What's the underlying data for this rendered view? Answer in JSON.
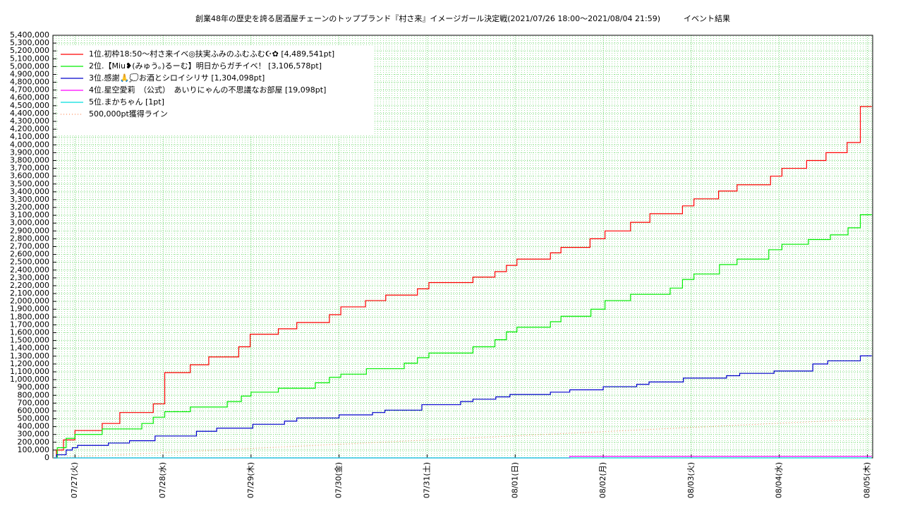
{
  "chart_data": {
    "type": "step",
    "title": "創業48年の歴史を誇る居酒屋チェーンのトップブランド『村さ来』イメージガール決定戦(2021/07/26 18:00～2021/08/04 21:59)　　　イベント結果",
    "xlim": [
      0.75,
      10.06
    ],
    "xticks": [
      {
        "value": 1,
        "label": "07/27(火)"
      },
      {
        "value": 2,
        "label": "07/28(水)"
      },
      {
        "value": 3,
        "label": "07/29(木)"
      },
      {
        "value": 4,
        "label": "07/30(金)"
      },
      {
        "value": 5,
        "label": "07/31(土)"
      },
      {
        "value": 6,
        "label": "08/01(日)"
      },
      {
        "value": 7,
        "label": "08/02(月)"
      },
      {
        "value": 8,
        "label": "08/03(火)"
      },
      {
        "value": 9,
        "label": "08/04(水)"
      },
      {
        "value": 10,
        "label": "08/05(木)"
      }
    ],
    "ylim": [
      0,
      5400000
    ],
    "yticks": [
      0,
      {
        "value": 100000,
        "label": "100,000"
      },
      {
        "value": 200000,
        "label": "200,000"
      },
      {
        "value": 300000,
        "label": "300,000"
      },
      {
        "value": 400000,
        "label": "400,000"
      },
      {
        "value": 500000,
        "label": "500,000"
      },
      {
        "value": 600000,
        "label": "600,000"
      },
      {
        "value": 700000,
        "label": "700,000"
      },
      {
        "value": 800000,
        "label": "800,000"
      },
      {
        "value": 900000,
        "label": "900,000"
      },
      {
        "value": 1000000,
        "label": "1,000,000"
      },
      {
        "value": 1100000,
        "label": "1,100,000"
      },
      {
        "value": 1200000,
        "label": "1,200,000"
      },
      {
        "value": 1300000,
        "label": "1,300,000"
      },
      {
        "value": 1400000,
        "label": "1,400,000"
      },
      {
        "value": 1500000,
        "label": "1,500,000"
      },
      {
        "value": 1600000,
        "label": "1,600,000"
      },
      {
        "value": 1700000,
        "label": "1,700,000"
      },
      {
        "value": 1800000,
        "label": "1,800,000"
      },
      {
        "value": 1900000,
        "label": "1,900,000"
      },
      {
        "value": 2000000,
        "label": "2,000,000"
      },
      {
        "value": 2100000,
        "label": "2,100,000"
      },
      {
        "value": 2200000,
        "label": "2,200,000"
      },
      {
        "value": 2300000,
        "label": "2,300,000"
      },
      {
        "value": 2400000,
        "label": "2,400,000"
      },
      {
        "value": 2500000,
        "label": "2,500,000"
      },
      {
        "value": 2600000,
        "label": "2,600,000"
      },
      {
        "value": 2700000,
        "label": "2,700,000"
      },
      {
        "value": 2800000,
        "label": "2,800,000"
      },
      {
        "value": 2900000,
        "label": "2,900,000"
      },
      {
        "value": 3000000,
        "label": "3,000,000"
      },
      {
        "value": 3100000,
        "label": "3,100,000"
      },
      {
        "value": 3200000,
        "label": "3,200,000"
      },
      {
        "value": 3300000,
        "label": "3,300,000"
      },
      {
        "value": 3400000,
        "label": "3,400,000"
      },
      {
        "value": 3500000,
        "label": "3,500,000"
      },
      {
        "value": 3600000,
        "label": "3,600,000"
      },
      {
        "value": 3700000,
        "label": "3,700,000"
      },
      {
        "value": 3800000,
        "label": "3,800,000"
      },
      {
        "value": 3900000,
        "label": "3,900,000"
      },
      {
        "value": 4000000,
        "label": "4,000,000"
      },
      {
        "value": 4100000,
        "label": "4,100,000"
      },
      {
        "value": 4200000,
        "label": "4,200,000"
      },
      {
        "value": 4300000,
        "label": "4,300,000"
      },
      {
        "value": 4400000,
        "label": "4,400,000"
      },
      {
        "value": 4500000,
        "label": "4,500,000"
      },
      {
        "value": 4600000,
        "label": "4,600,000"
      },
      {
        "value": 4700000,
        "label": "4,700,000"
      },
      {
        "value": 4800000,
        "label": "4,800,000"
      },
      {
        "value": 4900000,
        "label": "4,900,000"
      },
      {
        "value": 5000000,
        "label": "5,000,000"
      },
      {
        "value": 5100000,
        "label": "5,100,000"
      },
      {
        "value": 5200000,
        "label": "5,200,000"
      },
      {
        "value": 5300000,
        "label": "5,300,000"
      },
      {
        "value": 5400000,
        "label": "5,400,000"
      }
    ],
    "grid": true,
    "legend": "upper left",
    "series": [
      {
        "name": "1位.初枠18:50～村さ来イベ◎扶実ふみのふむふむ☪✿ [4,489,541pt]",
        "color": "#ff0000",
        "x": [
          0.75,
          0.79,
          0.87,
          1.0,
          1.31,
          1.51,
          1.89,
          2.02,
          2.31,
          2.52,
          2.86,
          2.99,
          3.31,
          3.52,
          3.89,
          4.02,
          4.3,
          4.53,
          4.89,
          5.02,
          5.52,
          5.77,
          5.9,
          6.02,
          6.4,
          6.52,
          6.85,
          7.02,
          7.31,
          7.53,
          7.9,
          8.03,
          8.31,
          8.52,
          8.9,
          9.03,
          9.31,
          9.53,
          9.77,
          9.92,
          10.05
        ],
        "values": [
          0,
          100000,
          230000,
          350000,
          440000,
          580000,
          690000,
          1090000,
          1190000,
          1290000,
          1420000,
          1580000,
          1650000,
          1730000,
          1830000,
          1930000,
          2010000,
          2080000,
          2160000,
          2240000,
          2310000,
          2380000,
          2460000,
          2540000,
          2620000,
          2690000,
          2800000,
          2900000,
          3010000,
          3120000,
          3220000,
          3310000,
          3410000,
          3490000,
          3600000,
          3700000,
          3800000,
          3900000,
          4030000,
          4489541,
          4489541
        ]
      },
      {
        "name": "2位.【Miu❥(みゅう。)るーむ】明日からガチイベ！ [3,106,578pt]",
        "color": "#00ee00",
        "x": [
          0.75,
          0.8,
          0.9,
          1.0,
          1.31,
          1.76,
          1.89,
          2.02,
          2.31,
          2.73,
          2.89,
          3.0,
          3.31,
          3.73,
          3.89,
          4.02,
          4.31,
          4.74,
          4.89,
          5.02,
          5.52,
          5.77,
          5.9,
          6.02,
          6.4,
          6.52,
          6.86,
          7.02,
          7.31,
          7.76,
          7.9,
          8.03,
          8.32,
          8.52,
          8.88,
          9.03,
          9.33,
          9.58,
          9.78,
          9.92,
          10.05
        ],
        "values": [
          0,
          130000,
          250000,
          300000,
          370000,
          440000,
          520000,
          590000,
          650000,
          720000,
          790000,
          840000,
          890000,
          960000,
          1030000,
          1070000,
          1140000,
          1210000,
          1280000,
          1340000,
          1420000,
          1510000,
          1610000,
          1670000,
          1740000,
          1810000,
          1900000,
          2010000,
          2090000,
          2170000,
          2280000,
          2350000,
          2470000,
          2540000,
          2660000,
          2730000,
          2790000,
          2850000,
          2940000,
          3106578,
          3106578
        ]
      },
      {
        "name": "3位.感謝🙏💭お酒とシロイシリサ [1,304,098pt]",
        "color": "#0000cc",
        "x": [
          0.75,
          0.79,
          0.9,
          0.97,
          1.03,
          1.38,
          1.62,
          1.91,
          2.38,
          2.61,
          3.02,
          3.38,
          3.52,
          4.0,
          4.38,
          4.52,
          4.94,
          5.38,
          5.52,
          5.78,
          5.94,
          6.4,
          6.62,
          7.0,
          7.38,
          7.52,
          7.91,
          8.4,
          8.55,
          8.94,
          9.38,
          9.55,
          9.92,
          10.05
        ],
        "values": [
          0,
          40000,
          100000,
          130000,
          160000,
          190000,
          220000,
          280000,
          340000,
          380000,
          430000,
          470000,
          510000,
          550000,
          580000,
          610000,
          680000,
          720000,
          750000,
          780000,
          810000,
          840000,
          870000,
          910000,
          940000,
          970000,
          1020000,
          1050000,
          1080000,
          1110000,
          1200000,
          1240000,
          1304098,
          1304098
        ]
      },
      {
        "name": "4位.星空愛莉　（公式）　あいりにゃんの不思議なお部屋 [19,098pt]",
        "color": "#ff00ff",
        "x": [
          0.75,
          6.62,
          10.05
        ],
        "values": [
          0,
          19098,
          19098
        ]
      },
      {
        "name": "5位.まかちゃん [1pt]",
        "color": "#00dddd",
        "x": [
          0.75,
          10.05
        ],
        "values": [
          1,
          1
        ]
      },
      {
        "name": "500,000pt獲得ライン",
        "color": "#ff9060",
        "line_style": "dotted",
        "x": [
          0.75,
          10.06
        ],
        "values": [
          0,
          500000
        ]
      }
    ]
  }
}
